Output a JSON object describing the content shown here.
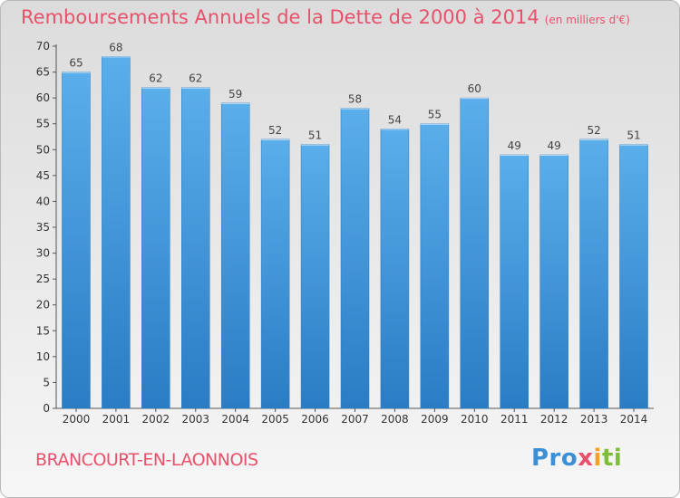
{
  "header": {
    "title": "Remboursements Annuels de la Dette de 2000 à 2014",
    "unit": "(en milliers d'€)"
  },
  "footer": {
    "commune": "BRANCOURT-EN-LAONNOIS",
    "logo_parts": [
      "Pro",
      "x",
      "i",
      "ti"
    ]
  },
  "colors": {
    "bar_top": "#5aaeea",
    "bar_bottom": "#2a7cc4",
    "title": "#e8516c"
  },
  "chart_data": {
    "type": "bar",
    "title": "Remboursements Annuels de la Dette de 2000 à 2014",
    "subtitle": "(en milliers d'€)",
    "xlabel": "",
    "ylabel": "",
    "categories": [
      "2000",
      "2001",
      "2002",
      "2003",
      "2004",
      "2005",
      "2006",
      "2007",
      "2008",
      "2009",
      "2010",
      "2011",
      "2012",
      "2013",
      "2014"
    ],
    "values": [
      65,
      68,
      62,
      62,
      59,
      52,
      51,
      58,
      54,
      55,
      60,
      49,
      49,
      52,
      51
    ],
    "ylim": [
      0,
      70
    ],
    "yticks": [
      0,
      5,
      10,
      15,
      20,
      25,
      30,
      35,
      40,
      45,
      50,
      55,
      60,
      65,
      70
    ],
    "grid": false,
    "data_labels": true
  }
}
